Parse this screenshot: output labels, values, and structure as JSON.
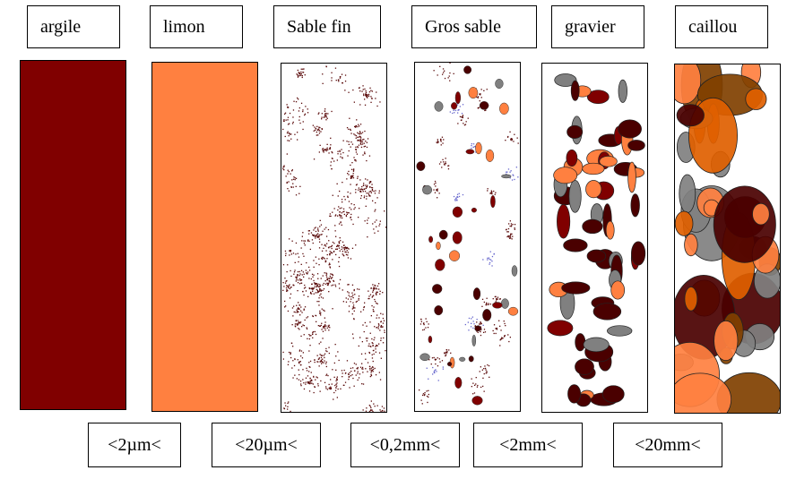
{
  "soil_classes": [
    {
      "name": "argile",
      "fill": "#800000"
    },
    {
      "name": "limon",
      "fill": "#ff8040"
    },
    {
      "name": "Sable fin",
      "fill": "#ffffff"
    },
    {
      "name": "Gros sable",
      "fill": "#ffffff"
    },
    {
      "name": "gravier",
      "fill": "#ffffff"
    },
    {
      "name": "caillou",
      "fill": "#ffffff"
    }
  ],
  "size_boundaries": [
    "<2µm<",
    "<20µm<",
    "<0,2mm<",
    "<2mm<",
    "<20mm<"
  ],
  "colors": {
    "dark_red": "#800000",
    "orange": "#ff8040",
    "very_dark_red": "#4a0000",
    "gray": "#808080",
    "brown": "#804000",
    "dark_orange": "#e06000",
    "blue_speck": "#6666cc",
    "speck": "#5a0a0a"
  }
}
